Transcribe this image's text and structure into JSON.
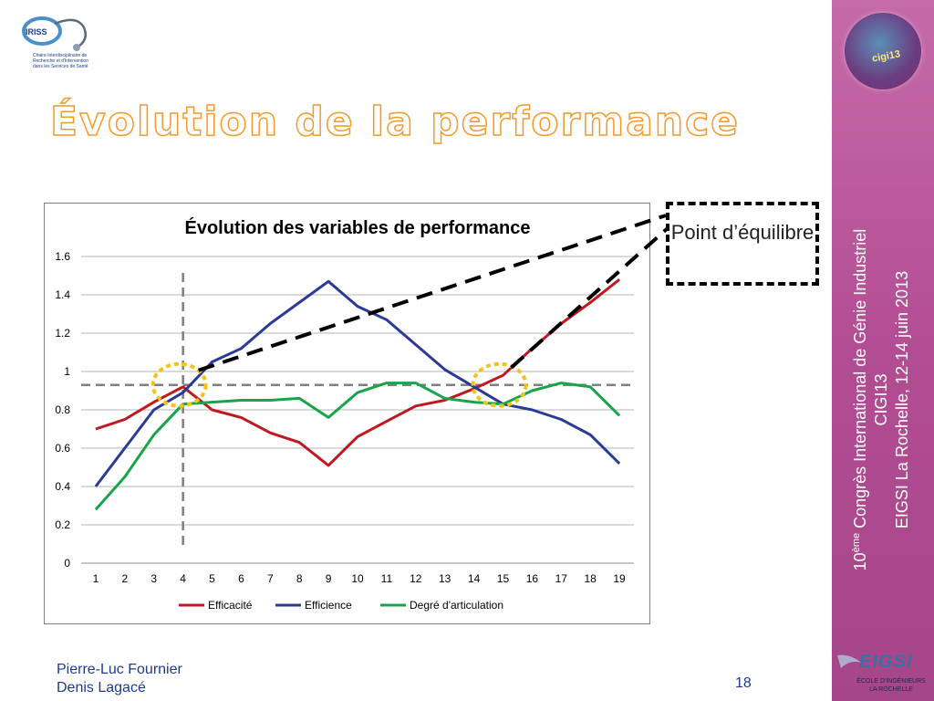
{
  "logo": {
    "brand": "IRISS",
    "tagline": "Chaire Interdisciplinaire de Recherche et d'Intervention dans les Services de Santé"
  },
  "slide_title": "Évolution de la performance",
  "chart_data": {
    "type": "line",
    "title": "Évolution des variables de performance",
    "xlabel": "",
    "ylabel": "",
    "categories": [
      "1",
      "2",
      "3",
      "4",
      "5",
      "6",
      "7",
      "8",
      "9",
      "10",
      "11",
      "12",
      "13",
      "14",
      "15",
      "16",
      "17",
      "18",
      "19"
    ],
    "ylim": [
      0,
      1.6
    ],
    "yticks": [
      "0",
      "0.2",
      "0.4",
      "0.6",
      "0.8",
      "1",
      "1.2",
      "1.4",
      "1.6"
    ],
    "grid": true,
    "legend": "bottom",
    "series": [
      {
        "name": "Efficacité",
        "color": "#c0181f",
        "values": [
          0.7,
          0.75,
          0.84,
          0.92,
          0.8,
          0.76,
          0.68,
          0.63,
          0.51,
          0.66,
          0.74,
          0.82,
          0.85,
          0.91,
          0.98,
          1.12,
          1.25,
          1.36,
          1.48
        ]
      },
      {
        "name": "Efficience",
        "color": "#2b3a96",
        "values": [
          0.4,
          0.6,
          0.8,
          0.89,
          1.05,
          1.12,
          1.25,
          1.36,
          1.47,
          1.34,
          1.27,
          1.14,
          1.01,
          0.92,
          0.83,
          0.8,
          0.75,
          0.67,
          0.52
        ]
      },
      {
        "name": "Degré d'articulation",
        "color": "#1aa44a",
        "values": [
          0.28,
          0.45,
          0.67,
          0.83,
          0.84,
          0.85,
          0.85,
          0.86,
          0.76,
          0.89,
          0.94,
          0.94,
          0.86,
          0.84,
          0.83,
          0.9,
          0.94,
          0.92,
          0.77
        ]
      }
    ],
    "annotations": {
      "equilibrium_level": 0.93,
      "vertical_marker_x": "4",
      "circles_at_x": [
        "4",
        "15"
      ],
      "callout_label": "Point d’équilibre"
    }
  },
  "sidebar": {
    "logo_text": "cigi13",
    "conference_edition": "10",
    "conference_sup": "ème",
    "conference_name": " Congrès International de Génie Industriel",
    "conference_code": "CIGI13",
    "conference_place": "EIGSI La Rochelle, 12-14 juin 2013"
  },
  "footer": {
    "author1": "Pierre-Luc Fournier",
    "author2": "Denis Lagacé",
    "page_number": "18"
  },
  "school_logo": {
    "name": "EIGSI",
    "sub1": "ÉCOLE D'INGÉNIEURS",
    "sub2": "LA ROCHELLE"
  },
  "colors": {
    "title_outline": "#f29a2e",
    "sidebar": "#b34d93",
    "footer_text": "#1f3a93",
    "circle": "#f3c21b"
  }
}
